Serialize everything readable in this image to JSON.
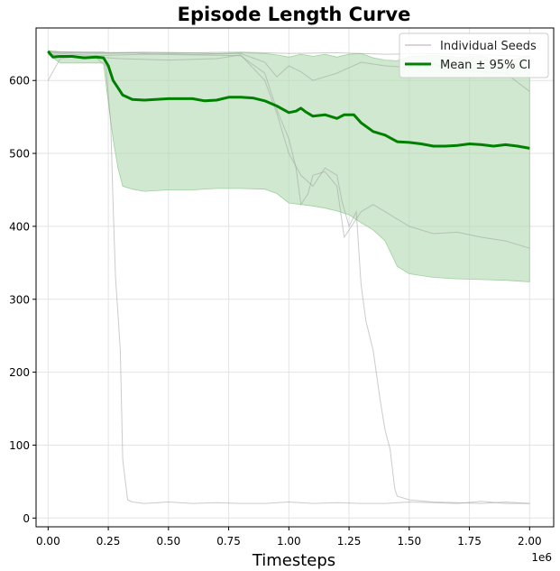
{
  "chart_data": {
    "type": "line",
    "title": "Episode Length Curve",
    "xlabel": "Timesteps",
    "ylabel": "",
    "x_offset_text": "1e6",
    "xlim": [
      -0.05,
      2.1
    ],
    "ylim": [
      -12,
      672
    ],
    "x_ticks": [
      0.0,
      0.25,
      0.5,
      0.75,
      1.0,
      1.25,
      1.5,
      1.75,
      2.0
    ],
    "x_tick_labels": [
      "0.00",
      "0.25",
      "0.50",
      "0.75",
      "1.00",
      "1.25",
      "1.50",
      "1.75",
      "2.00"
    ],
    "y_ticks": [
      0,
      100,
      200,
      300,
      400,
      500,
      600
    ],
    "y_tick_labels": [
      "0",
      "100",
      "200",
      "300",
      "400",
      "500",
      "600"
    ],
    "grid": true,
    "legend": {
      "position": "top-right",
      "entries": [
        "Individual Seeds",
        "Mean ± 95% CI"
      ]
    },
    "colors": {
      "mean": "#008000",
      "ci_fill": "#b5dcb5",
      "seeds": "#a0a0a0"
    },
    "mean": {
      "name": "Mean ± 95% CI",
      "x": [
        0.0,
        0.02,
        0.05,
        0.1,
        0.15,
        0.2,
        0.23,
        0.25,
        0.27,
        0.29,
        0.31,
        0.35,
        0.4,
        0.5,
        0.6,
        0.65,
        0.7,
        0.75,
        0.8,
        0.85,
        0.9,
        0.95,
        1.0,
        1.03,
        1.05,
        1.07,
        1.1,
        1.15,
        1.2,
        1.23,
        1.27,
        1.3,
        1.35,
        1.4,
        1.45,
        1.5,
        1.55,
        1.6,
        1.65,
        1.7,
        1.75,
        1.8,
        1.85,
        1.9,
        1.95,
        2.0
      ],
      "y": [
        640,
        632,
        633,
        633,
        631,
        632,
        631,
        620,
        600,
        590,
        580,
        574,
        573,
        575,
        575,
        572,
        573,
        577,
        577,
        576,
        572,
        565,
        556,
        558,
        562,
        557,
        551,
        553,
        548,
        553,
        553,
        542,
        530,
        525,
        516,
        515,
        513,
        510,
        510,
        511,
        513,
        512,
        510,
        512,
        510,
        507
      ]
    },
    "ci": {
      "x": [
        0.0,
        0.05,
        0.1,
        0.2,
        0.23,
        0.25,
        0.27,
        0.29,
        0.31,
        0.35,
        0.4,
        0.5,
        0.6,
        0.7,
        0.8,
        0.9,
        0.95,
        1.0,
        1.05,
        1.1,
        1.15,
        1.2,
        1.25,
        1.3,
        1.35,
        1.4,
        1.45,
        1.5,
        1.6,
        1.7,
        1.8,
        1.9,
        2.0
      ],
      "upper": [
        641,
        639,
        639,
        639,
        639,
        638,
        638,
        638,
        638,
        638,
        637,
        638,
        638,
        637,
        638,
        637,
        635,
        632,
        636,
        633,
        636,
        632,
        636,
        637,
        631,
        628,
        627,
        633,
        634,
        632,
        633,
        626,
        634
      ],
      "lower": [
        636,
        624,
        624,
        624,
        624,
        570,
        520,
        480,
        455,
        451,
        448,
        450,
        450,
        452,
        452,
        451,
        445,
        432,
        430,
        428,
        425,
        421,
        416,
        405,
        395,
        380,
        345,
        335,
        330,
        328,
        327,
        326,
        324
      ]
    },
    "seeds": [
      {
        "x": [
          0.0,
          0.05,
          0.1,
          0.2,
          0.24,
          0.26,
          0.27,
          0.28,
          0.29,
          0.3,
          0.31,
          0.33,
          0.35,
          0.4,
          0.5,
          0.6,
          0.7,
          0.8,
          0.9,
          1.0,
          1.1,
          1.2,
          1.3,
          1.4,
          1.5,
          1.6,
          1.7,
          1.8,
          1.9,
          2.0
        ],
        "y": [
          600,
          630,
          632,
          631,
          620,
          540,
          430,
          330,
          280,
          230,
          80,
          25,
          22,
          20,
          22,
          20,
          21,
          20,
          20,
          22,
          20,
          21,
          20,
          20,
          22,
          21,
          20,
          23,
          20,
          20
        ]
      },
      {
        "x": [
          0.0,
          0.1,
          0.2,
          0.3,
          0.5,
          0.7,
          0.8,
          0.9,
          0.95,
          1.0,
          1.05,
          1.1,
          1.15,
          1.2,
          1.22,
          1.25,
          1.28,
          1.3,
          1.32,
          1.35,
          1.38,
          1.4,
          1.42,
          1.44,
          1.45,
          1.5,
          1.6,
          1.7,
          1.8,
          1.9,
          2.0
        ],
        "y": [
          636,
          633,
          632,
          630,
          628,
          630,
          635,
          600,
          555,
          500,
          470,
          455,
          480,
          470,
          435,
          400,
          420,
          320,
          270,
          230,
          160,
          120,
          95,
          40,
          30,
          25,
          22,
          21,
          20,
          22,
          20
        ]
      },
      {
        "x": [
          0.0,
          0.2,
          0.4,
          0.6,
          0.8,
          0.9,
          0.95,
          1.0,
          1.03,
          1.05,
          1.08,
          1.1,
          1.15,
          1.2,
          1.23,
          1.26,
          1.3,
          1.35,
          1.4,
          1.5,
          1.6,
          1.7,
          1.8,
          1.9,
          2.0
        ],
        "y": [
          638,
          634,
          636,
          635,
          634,
          610,
          560,
          520,
          480,
          430,
          445,
          470,
          475,
          455,
          385,
          400,
          420,
          430,
          420,
          400,
          390,
          392,
          385,
          380,
          370
        ]
      },
      {
        "x": [
          0.0,
          0.2,
          0.4,
          0.6,
          0.8,
          0.9,
          0.95,
          1.0,
          1.05,
          1.1,
          1.2,
          1.3,
          1.4,
          1.5,
          1.6,
          1.7,
          1.8,
          1.9,
          2.0
        ],
        "y": [
          639,
          637,
          638,
          636,
          637,
          625,
          605,
          620,
          612,
          600,
          610,
          625,
          620,
          618,
          622,
          615,
          612,
          610,
          585
        ]
      },
      {
        "x": [
          0.0,
          0.2,
          0.4,
          0.6,
          0.8,
          1.0,
          1.2,
          1.4,
          1.6,
          1.8,
          2.0
        ],
        "y": [
          640,
          638,
          639,
          638,
          639,
          637,
          638,
          636,
          637,
          635,
          633
        ]
      }
    ]
  }
}
